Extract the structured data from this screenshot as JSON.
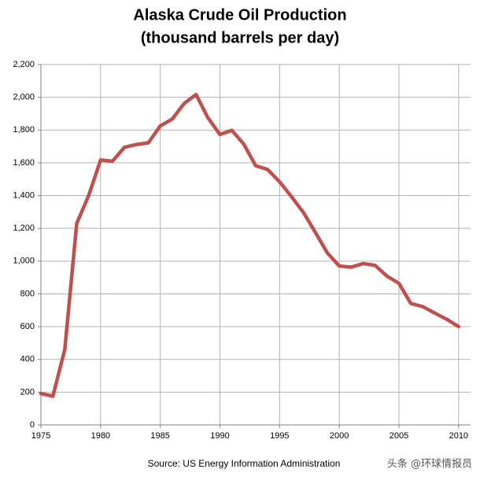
{
  "chart_data": {
    "type": "line",
    "title": [
      "Alaska Crude Oil Production",
      "(thousand barrels per day)"
    ],
    "source": "Source: US Energy Information Administration",
    "watermark": "头条 @环球情报员",
    "x": [
      1975,
      1976,
      1977,
      1978,
      1979,
      1980,
      1981,
      1982,
      1983,
      1984,
      1985,
      1986,
      1987,
      1988,
      1989,
      1990,
      1991,
      1992,
      1993,
      1994,
      1995,
      1996,
      1997,
      1998,
      1999,
      2000,
      2001,
      2002,
      2003,
      2004,
      2005,
      2006,
      2007,
      2008,
      2009,
      2010
    ],
    "values": [
      192,
      175,
      460,
      1230,
      1400,
      1617,
      1610,
      1695,
      1712,
      1722,
      1825,
      1867,
      1962,
      2017,
      1874,
      1773,
      1798,
      1714,
      1582,
      1559,
      1484,
      1393,
      1296,
      1175,
      1050,
      970,
      963,
      985,
      974,
      908,
      864,
      741,
      722,
      683,
      645,
      600
    ],
    "color": "#c0504d",
    "xlim": [
      1975,
      2011
    ],
    "xticks": [
      1975,
      1980,
      1985,
      1990,
      1995,
      2000,
      2005,
      2010
    ],
    "ylim": [
      0,
      2200
    ],
    "yticks": [
      0,
      200,
      400,
      600,
      800,
      {
        "value": 1000,
        "label": "1,000"
      },
      {
        "value": 1200,
        "label": "1,200"
      },
      {
        "value": 1400,
        "label": "1,400"
      },
      {
        "value": 1600,
        "label": "1,600"
      },
      {
        "value": 1800,
        "label": "1,800"
      },
      {
        "value": 2000,
        "label": "2,000"
      },
      {
        "value": 2200,
        "label": "2,200"
      }
    ],
    "grid": true
  }
}
